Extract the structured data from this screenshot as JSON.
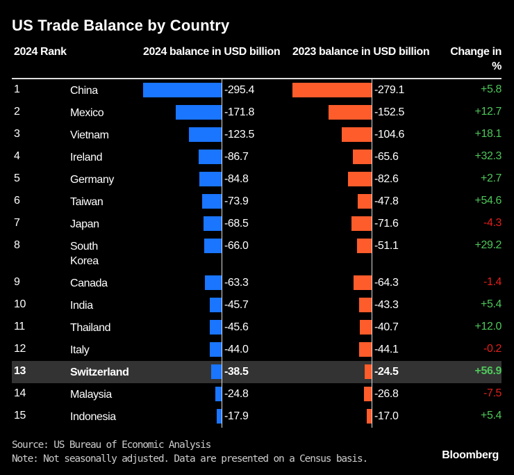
{
  "chart_data": {
    "type": "table",
    "title": "US Trade Balance by Country",
    "columns": [
      "2024 Rank",
      "",
      "2024 balance in USD billion",
      "2023 balance in USD billion",
      "Change in %"
    ],
    "header": {
      "rank": "2024 Rank",
      "bal2024": "2024 balance in USD billion",
      "bal2023": "2023 balance in USD billion",
      "change": "Change in %"
    },
    "rows": [
      {
        "rank": "1",
        "country": "China",
        "v2024": -295.4,
        "v2023": -279.1,
        "change": "+5.8",
        "l2024": "-295.4",
        "l2023": "-279.1"
      },
      {
        "rank": "2",
        "country": "Mexico",
        "v2024": -171.8,
        "v2023": -152.5,
        "change": "+12.7",
        "l2024": "-171.8",
        "l2023": "-152.5"
      },
      {
        "rank": "3",
        "country": "Vietnam",
        "v2024": -123.5,
        "v2023": -104.6,
        "change": "+18.1",
        "l2024": "-123.5",
        "l2023": "-104.6"
      },
      {
        "rank": "4",
        "country": "Ireland",
        "v2024": -86.7,
        "v2023": -65.6,
        "change": "+32.3",
        "l2024": "-86.7",
        "l2023": "-65.6"
      },
      {
        "rank": "5",
        "country": "Germany",
        "v2024": -84.8,
        "v2023": -82.6,
        "change": "+2.7",
        "l2024": "-84.8",
        "l2023": "-82.6"
      },
      {
        "rank": "6",
        "country": "Taiwan",
        "v2024": -73.9,
        "v2023": -47.8,
        "change": "+54.6",
        "l2024": "-73.9",
        "l2023": "-47.8"
      },
      {
        "rank": "7",
        "country": "Japan",
        "v2024": -68.5,
        "v2023": -71.6,
        "change": "-4.3",
        "l2024": "-68.5",
        "l2023": "-71.6"
      },
      {
        "rank": "8",
        "country": "South Korea",
        "v2024": -66.0,
        "v2023": -51.1,
        "change": "+29.2",
        "l2024": "-66.0",
        "l2023": "-51.1"
      },
      {
        "rank": "9",
        "country": "Canada",
        "v2024": -63.3,
        "v2023": -64.3,
        "change": "-1.4",
        "l2024": "-63.3",
        "l2023": "-64.3"
      },
      {
        "rank": "10",
        "country": "India",
        "v2024": -45.7,
        "v2023": -43.3,
        "change": "+5.4",
        "l2024": "-45.7",
        "l2023": "-43.3"
      },
      {
        "rank": "11",
        "country": "Thailand",
        "v2024": -45.6,
        "v2023": -40.7,
        "change": "+12.0",
        "l2024": "-45.6",
        "l2023": "-40.7"
      },
      {
        "rank": "12",
        "country": "Italy",
        "v2024": -44.0,
        "v2023": -44.1,
        "change": "-0.2",
        "l2024": "-44.0",
        "l2023": "-44.1"
      },
      {
        "rank": "13",
        "country": "Switzerland",
        "v2024": -38.5,
        "v2023": -24.5,
        "change": "+56.9",
        "l2024": "-38.5",
        "l2023": "-24.5",
        "highlight": true
      },
      {
        "rank": "14",
        "country": "Malaysia",
        "v2024": -24.8,
        "v2023": -26.8,
        "change": "-7.5",
        "l2024": "-24.8",
        "l2023": "-26.8"
      },
      {
        "rank": "15",
        "country": "Indonesia",
        "v2024": -17.9,
        "v2023": -17.0,
        "change": "+5.4",
        "l2024": "-17.9",
        "l2023": "-17.0"
      }
    ]
  },
  "colors": {
    "bar2024": "#1a75ff",
    "bar2023": "#ff5c2b",
    "positive": "#4ec75a",
    "negative": "#e0201c",
    "highlight_row": "#333333"
  },
  "footer": {
    "source": "Source: US Bureau of Economic Analysis",
    "note": "Note: Not seasonally adjusted. Data are presented on a Census basis.",
    "logo": "Bloomberg"
  }
}
